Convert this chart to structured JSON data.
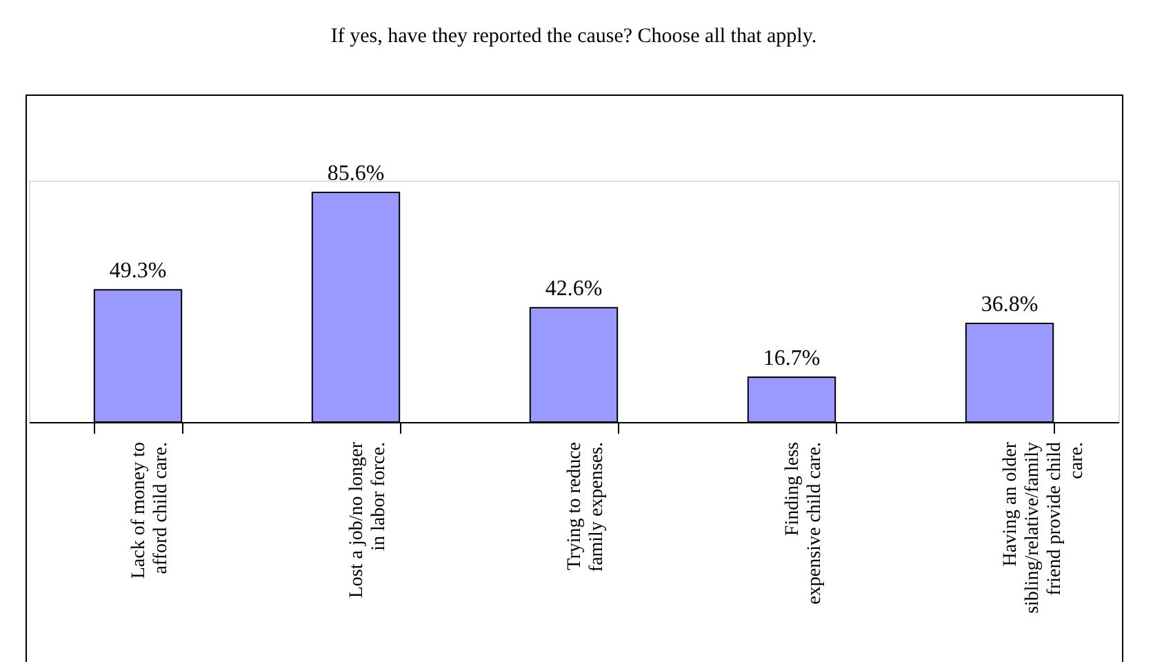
{
  "chart_data": {
    "type": "bar",
    "title": "If yes, have they reported the cause? Choose all that apply.",
    "categories": [
      "Lack of money to\nafford child care.",
      "Lost a job/no longer\nin labor force.",
      "Trying to reduce\nfamily expenses.",
      "Finding less\nexpensive child care.",
      "Having an older\nsibling/relative/family\nfriend provide child\ncare."
    ],
    "values": [
      49.3,
      85.6,
      42.6,
      16.7,
      36.8
    ],
    "value_labels": [
      "49.3%",
      "85.6%",
      "42.6%",
      "16.7%",
      "36.8%"
    ],
    "color": "#9999ff",
    "tick_labels": "x",
    "grid": false
  }
}
